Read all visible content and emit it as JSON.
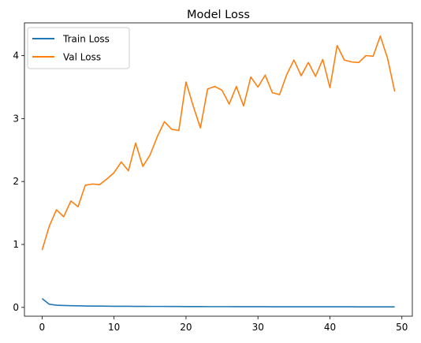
{
  "chart_data": {
    "type": "line",
    "title": "Model Loss",
    "xlabel": "",
    "ylabel": "",
    "xlim": [
      -2.45,
      51.45
    ],
    "ylim": [
      -0.14,
      4.52
    ],
    "xticks": [
      0,
      10,
      20,
      30,
      40,
      50
    ],
    "yticks": [
      0,
      1,
      2,
      3,
      4
    ],
    "grid": false,
    "legend_position": "upper-left",
    "x": [
      0,
      1,
      2,
      3,
      4,
      5,
      6,
      7,
      8,
      9,
      10,
      11,
      12,
      13,
      14,
      15,
      16,
      17,
      18,
      19,
      20,
      21,
      22,
      23,
      24,
      25,
      26,
      27,
      28,
      29,
      30,
      31,
      32,
      33,
      34,
      35,
      36,
      37,
      38,
      39,
      40,
      41,
      42,
      43,
      44,
      45,
      46,
      47,
      48,
      49
    ],
    "series": [
      {
        "name": "Train Loss",
        "color": "#1f77b4",
        "values": [
          0.14,
          0.05,
          0.035,
          0.03,
          0.027,
          0.025,
          0.022,
          0.021,
          0.02,
          0.019,
          0.018,
          0.018,
          0.017,
          0.016,
          0.016,
          0.015,
          0.015,
          0.015,
          0.014,
          0.014,
          0.013,
          0.013,
          0.013,
          0.012,
          0.012,
          0.012,
          0.012,
          0.011,
          0.011,
          0.011,
          0.011,
          0.011,
          0.01,
          0.01,
          0.01,
          0.01,
          0.01,
          0.01,
          0.009,
          0.009,
          0.009,
          0.009,
          0.009,
          0.009,
          0.008,
          0.008,
          0.008,
          0.008,
          0.008,
          0.008
        ]
      },
      {
        "name": "Val Loss",
        "color": "#ff7f0e",
        "values": [
          0.91,
          1.29,
          1.55,
          1.44,
          1.69,
          1.6,
          1.94,
          1.96,
          1.95,
          2.04,
          2.14,
          2.31,
          2.17,
          2.61,
          2.24,
          2.42,
          2.71,
          2.95,
          2.83,
          2.81,
          3.58,
          3.2,
          2.85,
          3.47,
          3.51,
          3.45,
          3.23,
          3.51,
          3.2,
          3.66,
          3.5,
          3.69,
          3.41,
          3.38,
          3.7,
          3.93,
          3.68,
          3.89,
          3.67,
          3.94,
          3.49,
          4.16,
          3.93,
          3.9,
          3.89,
          4.0,
          3.99,
          4.31,
          3.96,
          3.43
        ]
      }
    ]
  }
}
